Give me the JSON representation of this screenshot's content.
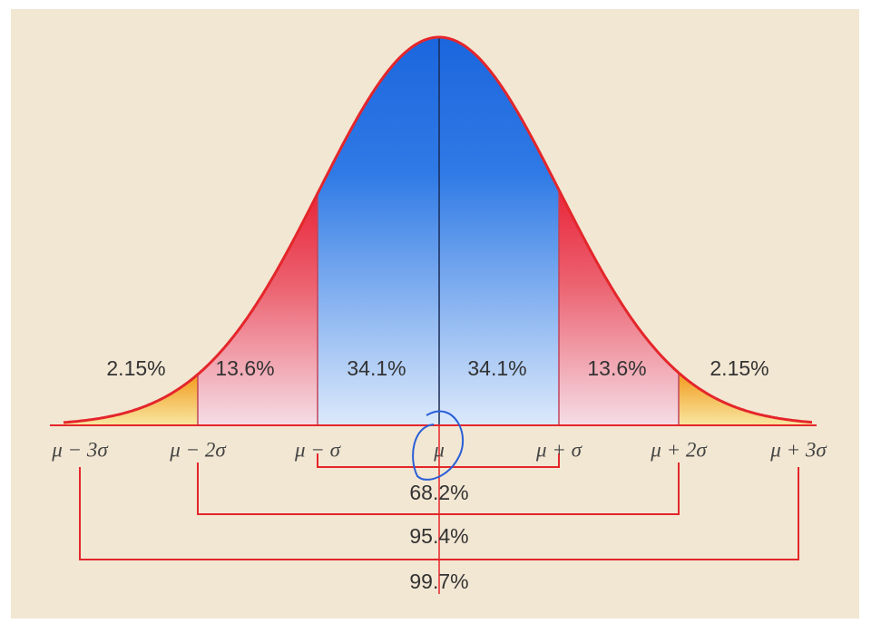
{
  "region_labels": [
    "2.15%",
    "13.6%",
    "34.1%",
    "34.1%",
    "13.6%",
    "2.15%"
  ],
  "axis_labels": [
    "μ − 3σ",
    "μ − 2σ",
    "μ − σ",
    "μ",
    "μ + σ",
    "μ + 2σ",
    "μ + 3σ"
  ],
  "bracket_labels": [
    "68.2%",
    "95.4%",
    "99.7%"
  ]
}
